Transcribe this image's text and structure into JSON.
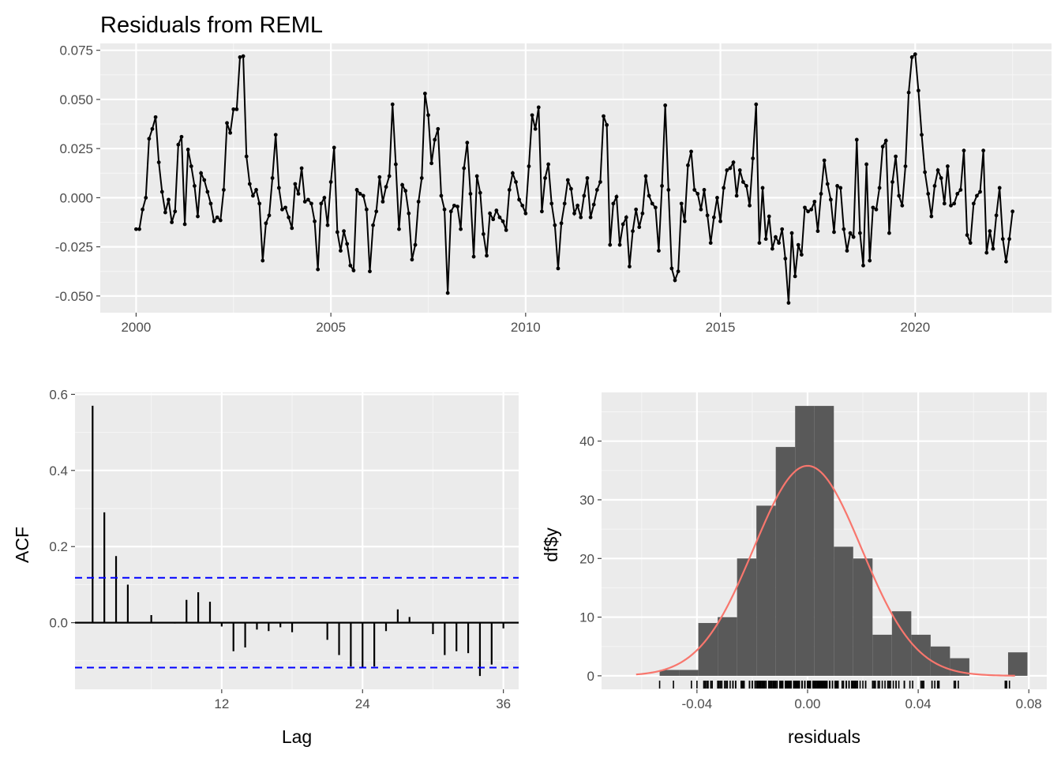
{
  "colors": {
    "panel": "#ebebeb",
    "grid_major": "#ffffff",
    "grid_minor": "#f5f5f5",
    "series": "#000000",
    "ci": "#0000ff",
    "bars": "#595959",
    "density": "#f8766d",
    "tick_text": "#4d4d4d"
  },
  "chart_data": [
    {
      "type": "line",
      "title": "Residuals from REML",
      "xlabel": "",
      "ylabel": "",
      "xlim": [
        1999.08,
        2023.5
      ],
      "ylim": [
        -0.0585,
        0.0785
      ],
      "x_ticks": [
        2000,
        2005,
        2010,
        2015,
        2020
      ],
      "x_tick_labels": [
        "2000",
        "2005",
        "2010",
        "2015",
        "2020"
      ],
      "y_ticks": [
        -0.05,
        -0.025,
        0,
        0.025,
        0.05,
        0.075
      ],
      "y_tick_labels": [
        "-0.050",
        "-0.025",
        "0.000",
        "0.025",
        "0.050",
        "0.075"
      ],
      "grid": true,
      "start": 2000.0,
      "frequency": 12,
      "values": [
        -0.016,
        -0.016,
        -0.006,
        0.0,
        0.03,
        0.035,
        0.041,
        0.018,
        0.003,
        -0.0075,
        -0.001,
        -0.0125,
        -0.007,
        0.027,
        0.031,
        -0.0135,
        0.0245,
        0.016,
        0.006,
        -0.0095,
        0.0125,
        0.009,
        0.003,
        -0.003,
        -0.012,
        -0.01,
        -0.0115,
        0.004,
        0.038,
        0.033,
        0.045,
        0.045,
        0.0715,
        0.072,
        0.021,
        0.007,
        0.001,
        0.004,
        -0.003,
        -0.032,
        -0.013,
        -0.009,
        0.01,
        0.032,
        0.005,
        -0.006,
        -0.005,
        -0.01,
        -0.0155,
        0.007,
        0.002,
        0.015,
        -0.002,
        -0.001,
        -0.003,
        -0.012,
        -0.0365,
        -0.003,
        0.0,
        -0.014,
        0.008,
        0.0255,
        -0.0175,
        -0.027,
        -0.017,
        -0.0235,
        -0.0345,
        -0.037,
        0.004,
        0.002,
        0.001,
        -0.006,
        -0.0375,
        -0.014,
        -0.007,
        0.0105,
        -0.002,
        0.0055,
        0.011,
        0.0475,
        0.017,
        -0.016,
        0.0065,
        0.0035,
        -0.008,
        -0.0315,
        -0.024,
        -0.002,
        0.01,
        0.053,
        0.042,
        0.0175,
        0.0295,
        0.035,
        0.001,
        -0.006,
        -0.0485,
        -0.007,
        -0.004,
        -0.0045,
        -0.016,
        0.015,
        0.028,
        0.002,
        -0.03,
        0.011,
        0.0025,
        -0.0185,
        -0.0295,
        -0.008,
        -0.011,
        -0.0065,
        -0.01,
        -0.012,
        -0.0165,
        0.004,
        0.0125,
        0.008,
        -0.001,
        -0.004,
        -0.008,
        0.016,
        0.042,
        0.035,
        0.046,
        -0.007,
        0.01,
        0.017,
        -0.003,
        -0.014,
        -0.036,
        -0.013,
        -0.003,
        0.009,
        0.0045,
        -0.008,
        -0.004,
        -0.01,
        0.001,
        0.01,
        -0.01,
        -0.0035,
        0.004,
        0.008,
        0.0415,
        0.037,
        -0.024,
        -0.003,
        0.0005,
        -0.024,
        -0.0135,
        -0.01,
        -0.035,
        -0.017,
        -0.006,
        -0.015,
        -0.008,
        0.011,
        0.001,
        -0.003,
        -0.005,
        -0.027,
        0.006,
        0.047,
        0.004,
        -0.036,
        -0.042,
        -0.0375,
        -0.003,
        -0.012,
        0.0165,
        0.0235,
        0.004,
        0.002,
        -0.006,
        0.004,
        -0.009,
        -0.023,
        -0.01,
        0.0,
        -0.012,
        0.005,
        0.014,
        0.015,
        0.018,
        0.001,
        0.014,
        0.008,
        0.006,
        -0.004,
        0.02,
        0.0475,
        -0.023,
        0.005,
        -0.021,
        -0.0095,
        -0.026,
        -0.02,
        -0.023,
        -0.016,
        -0.031,
        -0.0535,
        -0.018,
        -0.04,
        -0.024,
        -0.029,
        -0.005,
        -0.007,
        -0.006,
        -0.002,
        -0.017,
        0.002,
        0.019,
        0.007,
        -0.001,
        -0.0175,
        0.006,
        0.005,
        -0.016,
        -0.027,
        -0.018,
        -0.02,
        0.0295,
        -0.018,
        -0.0345,
        0.017,
        -0.032,
        -0.005,
        -0.006,
        0.005,
        0.026,
        0.029,
        -0.018,
        0.008,
        0.021,
        0.001,
        -0.004,
        0.016,
        0.0535,
        0.0715,
        0.073,
        0.0545,
        0.032,
        0.013,
        0.002,
        -0.0095,
        0.006,
        0.014,
        0.01,
        -0.003,
        0.016,
        -0.004,
        -0.003,
        0.002,
        0.004,
        0.024,
        -0.019,
        -0.023,
        -0.003,
        0.001,
        0.003,
        0.024,
        -0.028,
        -0.017,
        -0.026,
        -0.009,
        0.005,
        -0.021,
        -0.0325,
        -0.021,
        -0.007
      ]
    },
    {
      "type": "bar",
      "title": "",
      "xlabel": "Lag",
      "ylabel": "ACF",
      "xlim": [
        -0.5,
        37.3
      ],
      "ylim": [
        -0.175,
        0.605
      ],
      "x_ticks": [
        12,
        24,
        36
      ],
      "x_tick_labels": [
        "12",
        "24",
        "36"
      ],
      "y_ticks": [
        0,
        0.2,
        0.4,
        0.6
      ],
      "y_tick_labels": [
        "0.0",
        "0.2",
        "0.4",
        "0.6"
      ],
      "grid": true,
      "lags": [
        1,
        2,
        3,
        4,
        5,
        6,
        7,
        8,
        9,
        10,
        11,
        12,
        13,
        14,
        15,
        16,
        17,
        18,
        19,
        20,
        21,
        22,
        23,
        24,
        25,
        26,
        27,
        28,
        29,
        30,
        31,
        32,
        33,
        34,
        35,
        36
      ],
      "values": [
        0.57,
        0.29,
        0.175,
        0.1,
        0.002,
        0.02,
        0.002,
        -0.002,
        0.06,
        0.08,
        0.055,
        -0.01,
        -0.075,
        -0.065,
        -0.018,
        -0.022,
        -0.012,
        -0.025,
        0.0,
        0.0,
        -0.045,
        -0.085,
        -0.115,
        -0.118,
        -0.115,
        -0.022,
        0.035,
        0.015,
        0.0,
        -0.03,
        -0.085,
        -0.075,
        -0.08,
        -0.14,
        -0.11,
        -0.015
      ],
      "ci": [
        0.118,
        -0.118
      ]
    },
    {
      "type": "bar",
      "title": "",
      "xlabel": "residuals",
      "ylabel": "df$y",
      "xlim": [
        -0.0745,
        0.0865
      ],
      "ylim": [
        -2.3,
        48.3
      ],
      "x_ticks": [
        -0.04,
        0.0,
        0.04,
        0.08
      ],
      "x_tick_labels": [
        "-0.04",
        "0.00",
        "0.04",
        "0.08"
      ],
      "y_ticks": [
        0,
        10,
        20,
        30,
        40
      ],
      "y_tick_labels": [
        "0",
        "10",
        "20",
        "30",
        "40"
      ],
      "grid": true,
      "bin_edges": [
        -0.0535,
        -0.0465,
        -0.0395,
        -0.0325,
        -0.0255,
        -0.0185,
        -0.0115,
        -0.0045,
        0.0025,
        0.0095,
        0.0165,
        0.0235,
        0.0305,
        0.0375,
        0.0445,
        0.0515,
        0.0585,
        0.0655,
        0.0725,
        0.0795
      ],
      "counts": [
        1,
        1,
        9,
        10,
        20,
        29,
        39,
        46,
        46,
        22,
        20,
        7,
        11,
        7,
        5,
        3,
        0,
        0,
        4
      ],
      "density_curve": {
        "mean": 0.0,
        "sd": 0.0195,
        "peak": 35.8,
        "x_range": [
          -0.062,
          0.075
        ]
      },
      "rug": true
    }
  ]
}
